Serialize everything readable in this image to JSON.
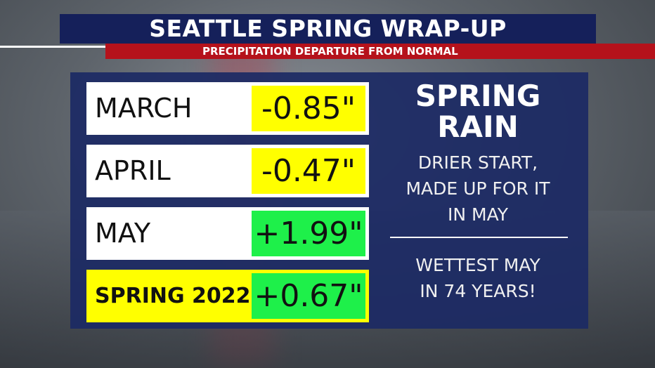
{
  "header": {
    "title": "SEATTLE SPRING WRAP-UP",
    "subtitle": "PRECIPITATION DEPARTURE FROM NORMAL"
  },
  "table": {
    "rows": [
      [
        "MARCH",
        "-0.85\""
      ],
      [
        "APRIL",
        "-0.47\""
      ],
      [
        "MAY",
        "+1.99\""
      ],
      [
        "SPRING 2022",
        "+0.67\""
      ]
    ]
  },
  "side": {
    "heading": [
      "SPRING",
      "RAIN"
    ],
    "note1": [
      "DRIER START,",
      "MADE UP FOR IT",
      "IN MAY"
    ],
    "note2": [
      "WETTEST MAY",
      "IN 74 YEARS!"
    ]
  }
}
